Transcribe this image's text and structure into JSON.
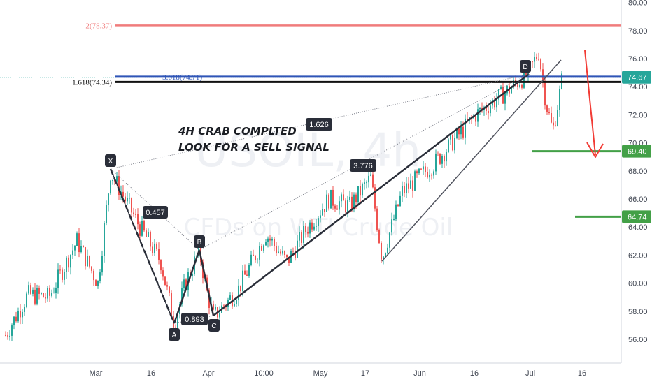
{
  "chart_data": {
    "type": "candlestick",
    "symbol_watermark": "USOIL, 4h",
    "subtitle_watermark": "CFDs on WTI Crude Oil",
    "y_axis": {
      "ticks": [
        56,
        58,
        60,
        62,
        64,
        66,
        68,
        70,
        72,
        74,
        76,
        78,
        80
      ],
      "tick_labels": [
        "56.00",
        "58.00",
        "60.00",
        "62.00",
        "64.00",
        "66.00",
        "68.00",
        "70.00",
        "72.00",
        "74.00",
        "76.00",
        "78.00",
        "80.00"
      ],
      "ylim": [
        54.3,
        80.8
      ]
    },
    "x_axis": {
      "tick_labels": [
        "Mar",
        "16",
        "Apr",
        "10:00",
        "May",
        "17",
        "Jun",
        "16",
        "Jul",
        "16"
      ]
    },
    "grid": false,
    "annotation_text": [
      "4H CRAB COMPLTED",
      "LOOK FOR A SELL SIGNAL"
    ],
    "pattern_points": [
      {
        "label": "X",
        "y": 67.9
      },
      {
        "label": "A",
        "y": 57.1
      },
      {
        "label": "B",
        "y": 62.3
      },
      {
        "label": "C",
        "y": 57.6
      },
      {
        "label": "D",
        "y": 75.1
      }
    ],
    "ratios": [
      "0.457",
      "0.893",
      "3.776",
      "1.626"
    ],
    "fib_levels": [
      {
        "label": "2(78.37)",
        "value": 78.37,
        "color": "#f07c7c"
      },
      {
        "label": "3.618(74.71)",
        "value": 74.71,
        "color": "#2f55b7"
      },
      {
        "label": "1.618(74.34)",
        "value": 74.34,
        "color": "#111111"
      }
    ],
    "price_tags": [
      {
        "label": "74.67",
        "value": 74.67,
        "color": "#26a69a"
      },
      {
        "label": "69.40",
        "value": 69.4,
        "color": "#43a047"
      },
      {
        "label": "64.74",
        "value": 64.74,
        "color": "#43a047"
      }
    ],
    "colors": {
      "up": "#26a69a",
      "down": "#ef5350",
      "pattern": "#2a2e39",
      "arrow": "#f23b35"
    }
  }
}
